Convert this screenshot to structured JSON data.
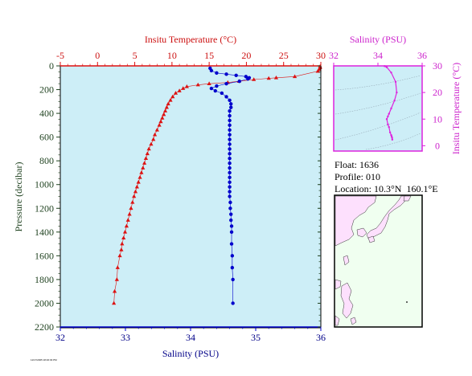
{
  "chart_data": [
    {
      "type": "scatter",
      "top_axis_label": "Insitu Temperature (°C)",
      "bottom_axis_label": "Salinity (PSU)",
      "ylabel": "Pressure (decibar)",
      "temp_ticks": [
        "-5",
        "0",
        "5",
        "10",
        "15",
        "20",
        "25",
        "30"
      ],
      "sal_ticks": [
        "32",
        "33",
        "34",
        "35",
        "36"
      ],
      "pressure_ticks": [
        "0",
        "200",
        "400",
        "600",
        "800",
        "1000",
        "1200",
        "1400",
        "1600",
        "1800",
        "2000",
        "2200"
      ],
      "temp_range": [
        -5,
        30
      ],
      "sal_range": [
        32,
        36
      ],
      "pressure_range": [
        0,
        2200
      ],
      "reversed_y": true,
      "colors": {
        "temperature": "#dd1111",
        "salinity": "#0000cc",
        "background": "#cdeef7"
      },
      "series": [
        {
          "name": "temperature",
          "x": [
            29.9,
            29.9,
            29.8,
            29.6,
            26.5,
            24.0,
            23.0,
            21.0,
            19.0,
            17.5,
            15.0,
            13.5,
            12.0,
            11.5,
            11.0,
            10.5,
            10.1,
            9.8,
            9.5,
            9.3,
            9.1,
            8.9,
            8.7,
            8.5,
            8.3,
            8.0,
            7.7,
            7.5,
            7.2,
            6.9,
            6.7,
            6.5,
            6.3,
            6.1,
            5.9,
            5.7,
            5.5,
            5.3,
            5.1,
            4.9,
            4.7,
            4.5,
            4.3,
            4.1,
            3.9,
            3.7,
            3.5,
            3.3,
            3.2,
            3.0,
            2.7,
            2.6,
            2.3,
            2.2
          ],
          "y": [
            5,
            15,
            30,
            45,
            90,
            100,
            105,
            115,
            130,
            140,
            150,
            160,
            175,
            190,
            210,
            230,
            260,
            290,
            320,
            350,
            380,
            410,
            440,
            470,
            500,
            540,
            580,
            620,
            660,
            700,
            740,
            780,
            820,
            860,
            900,
            940,
            980,
            1020,
            1060,
            1100,
            1150,
            1200,
            1250,
            1300,
            1350,
            1400,
            1450,
            1500,
            1550,
            1600,
            1700,
            1800,
            1900,
            2000
          ]
        },
        {
          "name": "salinity",
          "x": [
            34.3,
            34.32,
            34.4,
            34.55,
            34.7,
            34.85,
            34.9,
            34.88,
            34.75,
            34.55,
            34.4,
            34.32,
            34.38,
            34.48,
            34.55,
            34.6,
            34.62,
            34.62,
            34.6,
            34.6,
            34.6,
            34.6,
            34.6,
            34.6,
            34.6,
            34.6,
            34.6,
            34.6,
            34.6,
            34.6,
            34.6,
            34.6,
            34.6,
            34.6,
            34.6,
            34.6,
            34.6,
            34.61,
            34.61,
            34.62,
            34.62,
            34.63,
            34.63,
            34.63,
            34.64,
            34.64,
            34.65,
            34.65
          ],
          "y": [
            20,
            40,
            60,
            70,
            80,
            90,
            100,
            110,
            130,
            150,
            170,
            190,
            210,
            230,
            260,
            290,
            320,
            350,
            380,
            420,
            460,
            500,
            540,
            580,
            620,
            660,
            700,
            740,
            780,
            820,
            860,
            900,
            940,
            980,
            1020,
            1060,
            1100,
            1150,
            1200,
            1250,
            1300,
            1350,
            1400,
            1500,
            1600,
            1700,
            1800,
            2000
          ]
        }
      ]
    },
    {
      "type": "line",
      "xlabel": "Salinity (PSU)",
      "ylabel": "Insitu Temperature (°C)",
      "x_ticks": [
        "32",
        "34",
        "36"
      ],
      "y_ticks": [
        "0",
        "10",
        "20",
        "30"
      ],
      "xlim": [
        32,
        36
      ],
      "ylim": [
        -2,
        30
      ],
      "color": "#dd22dd",
      "series": [
        {
          "x": [
            34.3,
            34.4,
            34.6,
            34.8,
            34.85,
            34.75,
            34.6,
            34.5,
            34.45,
            34.4,
            34.45,
            34.5,
            34.55,
            34.6,
            34.62,
            34.64,
            34.65
          ],
          "y": [
            29.9,
            29.5,
            27.5,
            24,
            20,
            17,
            14,
            12,
            11,
            10,
            8,
            7,
            5,
            4,
            3.5,
            3,
            2.3
          ]
        }
      ]
    }
  ],
  "info": {
    "float_label": "Float:",
    "float_value": "1636",
    "profile_label": "Profile:",
    "profile_value": "010",
    "location_label": "Location:",
    "location_value": "10.3°N  160.1°E"
  },
  "footer_stamp": "11/17/2005 18:46:03 PM"
}
